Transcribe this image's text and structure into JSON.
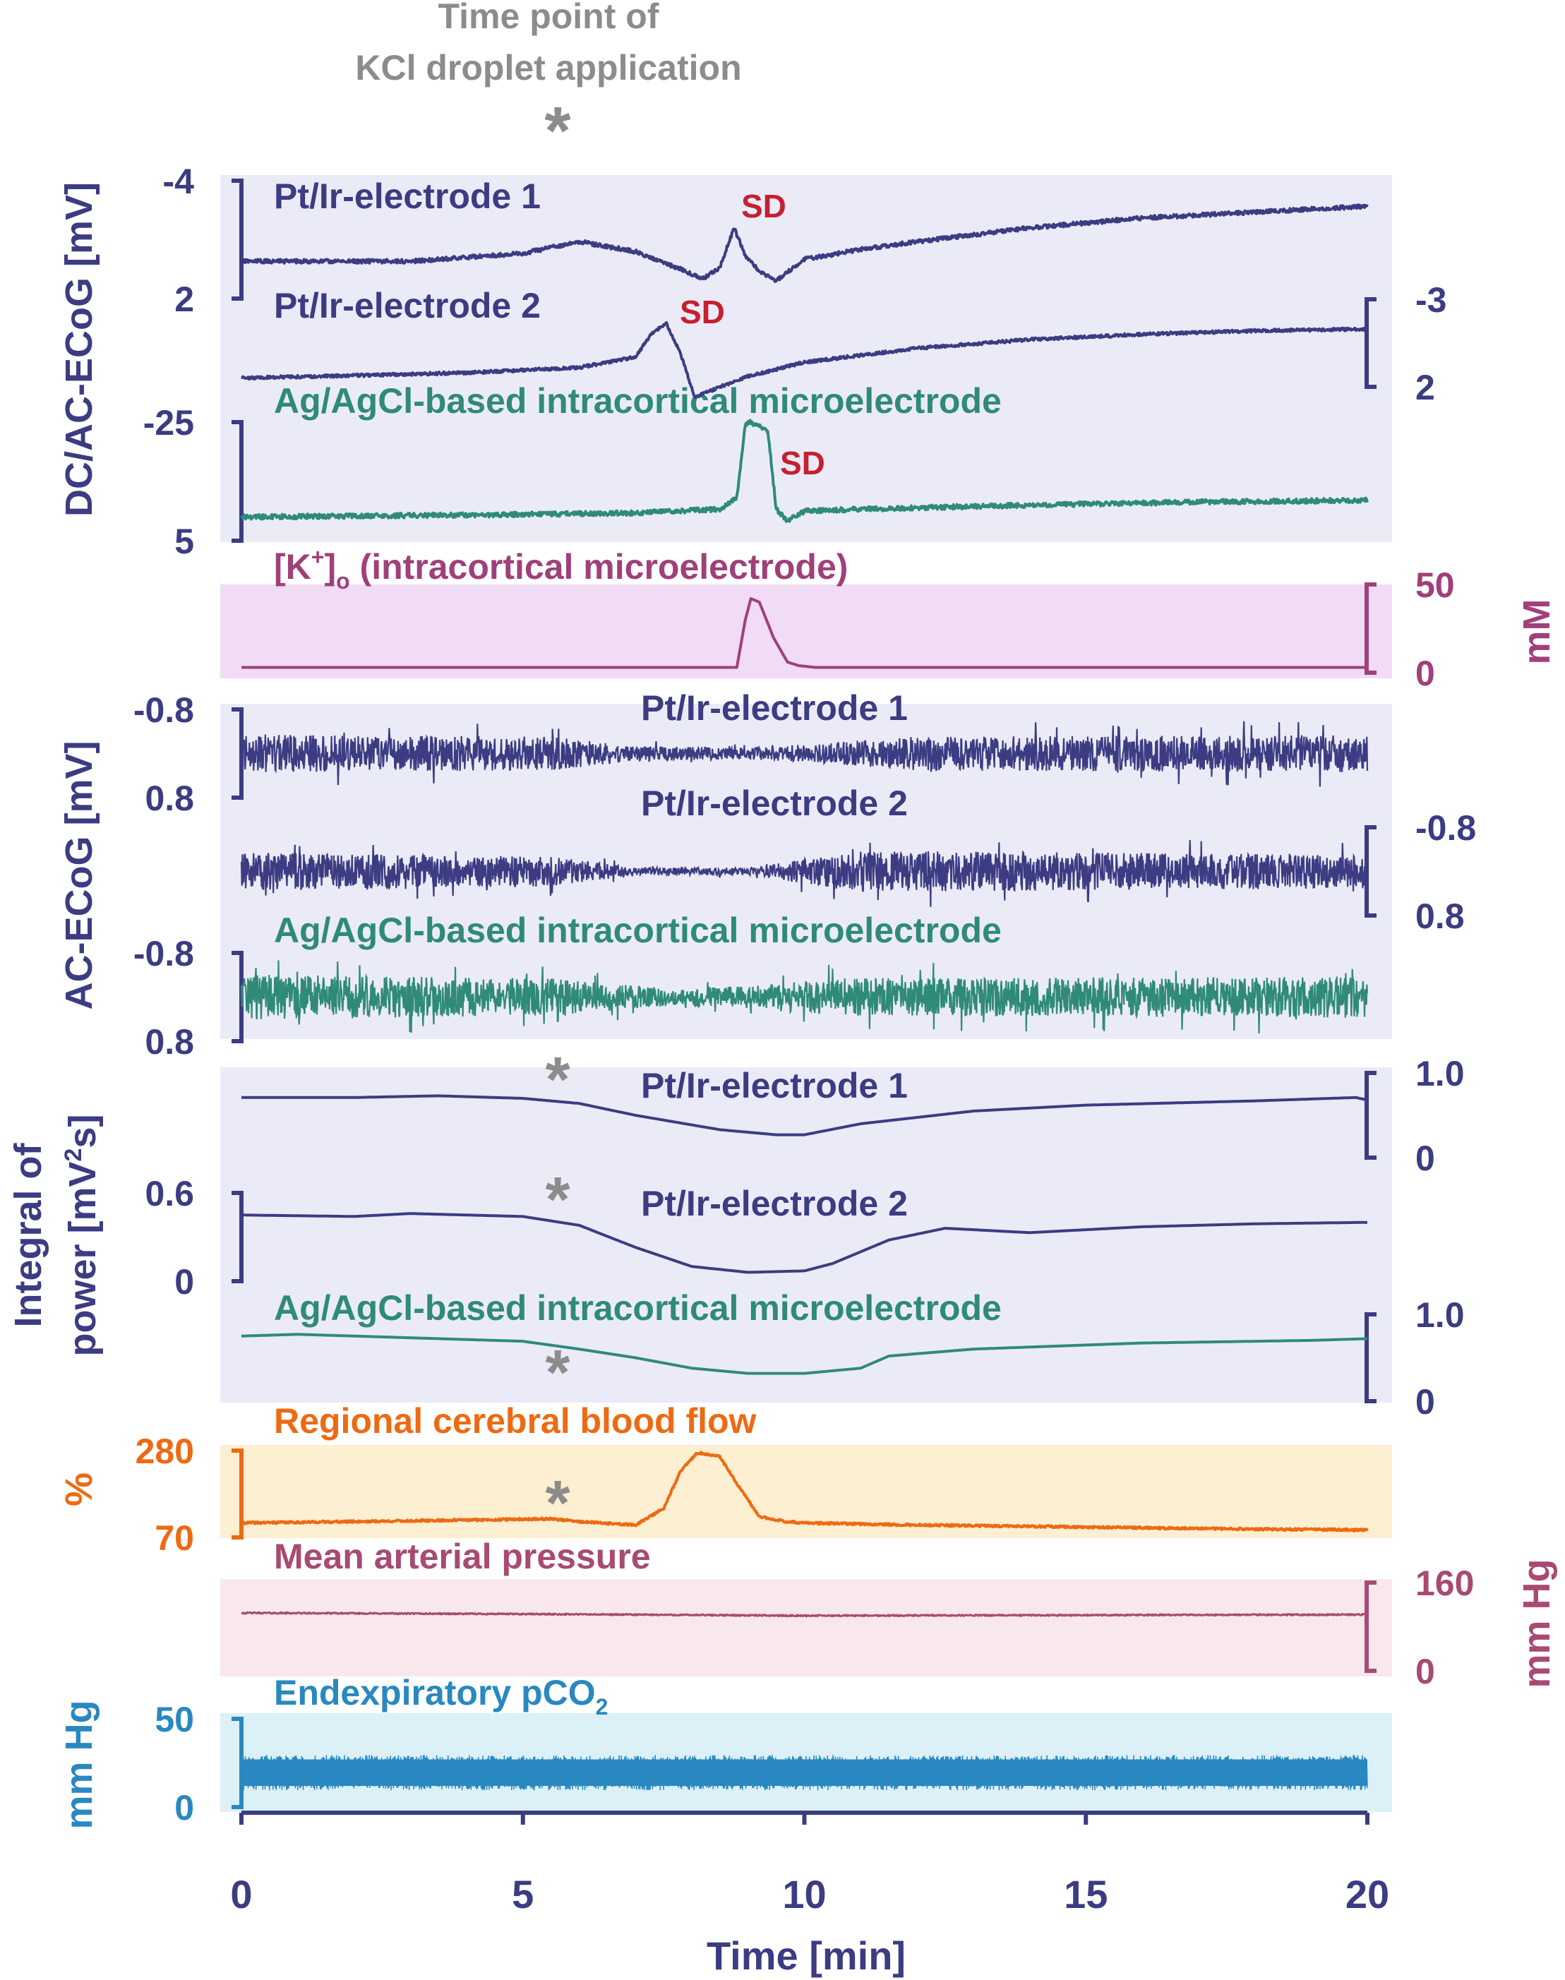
{
  "chart_data": {
    "type": "line",
    "title": "Time point of KCl droplet application",
    "title_lines": [
      "Time point of",
      "KCl droplet application"
    ],
    "marker_symbol": "*",
    "marker_time_min": 5.7,
    "xlabel": "Time [min]",
    "xlim": [
      0,
      20
    ],
    "xticks": [
      0,
      5,
      10,
      15,
      20
    ],
    "xtick_labels": [
      "0",
      "5",
      "10",
      "15",
      "20"
    ],
    "colors": {
      "ptir": "#3b3c82",
      "agcl": "#2f8a7a",
      "potassium": "#a0407a",
      "sd": "#c62030",
      "rcbf": "#ee6a12",
      "map": "#a84a72",
      "pco2": "#2a88c0",
      "grey": "#8c8c8c",
      "bg_ecog": "#ebebf8",
      "bg_k": "#f0dcf4",
      "bg_rcbf": "#fcefd2",
      "bg_map": "#f8e8ee",
      "bg_pco2": "#dcf0f7"
    },
    "group_labels": {
      "dc_ac_ecog": "DC/AC-ECoG [mV]",
      "ac_ecog": "AC-ECoG [mV]",
      "power_line1": "Integral of",
      "power_line2": "power [mV",
      "power_sup": "2",
      "power_tail": "s]",
      "rcbf_unit": "%",
      "k_unit": "mM",
      "map_unit": "mm Hg",
      "pco2_unit": "mm Hg"
    },
    "sd_label": "SD",
    "series": [
      {
        "id": "dc1",
        "name": "Pt/Ir-electrode 1",
        "ylim": [
          -4,
          2
        ],
        "axis": "left",
        "tick_labels": [
          "-4",
          "2"
        ],
        "x": [
          0,
          3,
          5,
          6,
          7,
          7.8,
          8.2,
          8.5,
          8.75,
          8.95,
          9.2,
          9.5,
          10,
          11,
          12,
          14,
          16,
          18,
          20
        ],
        "values": [
          0.1,
          0.1,
          -0.3,
          -0.9,
          -0.4,
          0.5,
          1.0,
          0.4,
          -1.6,
          -0.2,
          0.6,
          1.1,
          0.0,
          -0.5,
          -0.9,
          -1.6,
          -2.1,
          -2.4,
          -2.7
        ]
      },
      {
        "id": "dc2",
        "name": "Pt/Ir-electrode 2",
        "ylim": [
          -3,
          2
        ],
        "axis": "right",
        "tick_labels": [
          "-3",
          "2"
        ],
        "x": [
          0,
          4,
          6,
          7,
          7.3,
          7.55,
          7.8,
          8.05,
          8.5,
          9,
          10,
          12,
          14,
          16,
          18,
          20
        ],
        "values": [
          1.5,
          1.2,
          0.9,
          0.3,
          -1.1,
          -1.6,
          0.1,
          2.6,
          2.0,
          1.4,
          0.6,
          -0.2,
          -0.7,
          -1.0,
          -1.2,
          -1.3
        ]
      },
      {
        "id": "dc3",
        "name": "Ag/AgCl-based intracortical microelectrode",
        "ylim": [
          -25,
          5
        ],
        "axis": "left",
        "tick_labels": [
          "-25",
          "5"
        ],
        "x": [
          0,
          4,
          7,
          8.5,
          8.8,
          8.95,
          9.05,
          9.35,
          9.5,
          9.7,
          10,
          11,
          14,
          17,
          20
        ],
        "values": [
          -1.0,
          -1.5,
          -2.0,
          -3.0,
          -6,
          -24.5,
          -25,
          -23,
          -3,
          0,
          -2.5,
          -3,
          -4,
          -4.8,
          -5.2
        ]
      },
      {
        "id": "k",
        "name": "[K+]o (intracortical microelectrode)",
        "name_prefix": "[K",
        "name_sup": "+",
        "name_mid": "]",
        "name_sub": "o",
        "name_suffix": " (intracortical microelectrode)",
        "ylim": [
          0,
          50
        ],
        "axis": "right",
        "tick_labels": [
          "50",
          "0"
        ],
        "x": [
          0,
          8.8,
          8.95,
          9.05,
          9.2,
          9.45,
          9.7,
          9.9,
          10.2,
          20
        ],
        "values": [
          3,
          3,
          30,
          42,
          40,
          20,
          6,
          4,
          3,
          3
        ]
      },
      {
        "id": "ac1",
        "name": "Pt/Ir-electrode 1",
        "ylim": [
          -0.8,
          0.8
        ],
        "axis": "left",
        "tick_labels": [
          "-0.8",
          "0.8"
        ],
        "x": [
          0,
          5.5,
          7,
          9,
          10.5,
          12,
          20
        ],
        "amplitude": [
          0.5,
          0.45,
          0.2,
          0.15,
          0.3,
          0.45,
          0.5
        ]
      },
      {
        "id": "ac2",
        "name": "Pt/Ir-electrode 2",
        "ylim": [
          -0.8,
          0.8
        ],
        "axis": "right",
        "tick_labels": [
          "-0.8",
          "0.8"
        ],
        "x": [
          0,
          5.5,
          7,
          9,
          10.3,
          11,
          20
        ],
        "amplitude": [
          0.5,
          0.4,
          0.1,
          0.1,
          0.4,
          0.55,
          0.45
        ]
      },
      {
        "id": "ac3",
        "name": "Ag/AgCl-based intracortical microelectrode",
        "ylim": [
          -0.8,
          0.8
        ],
        "axis": "left",
        "tick_labels": [
          "-0.8",
          "0.8"
        ],
        "x": [
          0,
          5.5,
          7.5,
          9,
          10.5,
          20
        ],
        "amplitude": [
          0.6,
          0.5,
          0.25,
          0.3,
          0.5,
          0.55
        ]
      },
      {
        "id": "pw1",
        "name": "Pt/Ir-electrode 1",
        "ylim": [
          0,
          1.0
        ],
        "axis": "right",
        "tick_labels": [
          "1.0",
          "0"
        ],
        "x": [
          0,
          2,
          3.5,
          5,
          6,
          7,
          8.5,
          9.5,
          10,
          11,
          13,
          15,
          18,
          19.8,
          20
        ],
        "values": [
          0.71,
          0.71,
          0.73,
          0.7,
          0.64,
          0.5,
          0.33,
          0.27,
          0.27,
          0.4,
          0.55,
          0.62,
          0.67,
          0.71,
          0.68
        ]
      },
      {
        "id": "pw2",
        "name": "Pt/Ir-electrode 2",
        "ylim": [
          0,
          0.6
        ],
        "axis": "left",
        "tick_labels": [
          "0.6",
          "0"
        ],
        "x": [
          0,
          2,
          3,
          5,
          6,
          7,
          8,
          9,
          10,
          10.5,
          11.5,
          12.5,
          14,
          16,
          18,
          20
        ],
        "values": [
          0.45,
          0.44,
          0.46,
          0.44,
          0.38,
          0.23,
          0.1,
          0.06,
          0.07,
          0.12,
          0.28,
          0.36,
          0.33,
          0.37,
          0.39,
          0.4
        ]
      },
      {
        "id": "pw3",
        "name": "Ag/AgCl-based intracortical microelectrode",
        "ylim": [
          0,
          1.0
        ],
        "axis": "right",
        "tick_labels": [
          "1.0",
          "0"
        ],
        "x": [
          0,
          1,
          3,
          5,
          6,
          7,
          8,
          9,
          10,
          11,
          11.5,
          13,
          16,
          19,
          20
        ],
        "values": [
          0.75,
          0.77,
          0.73,
          0.69,
          0.6,
          0.5,
          0.38,
          0.32,
          0.32,
          0.38,
          0.52,
          0.6,
          0.67,
          0.7,
          0.72
        ]
      },
      {
        "id": "rcbf",
        "name": "Regional cerebral blood flow",
        "ylim": [
          70,
          280
        ],
        "axis": "left",
        "tick_labels": [
          "280",
          "70"
        ],
        "x": [
          0,
          3,
          5.5,
          6,
          7,
          7.5,
          7.8,
          8.1,
          8.5,
          8.8,
          9.2,
          9.7,
          10,
          12,
          15,
          18,
          20
        ],
        "values": [
          105,
          110,
          115,
          108,
          100,
          140,
          230,
          275,
          265,
          200,
          120,
          108,
          105,
          100,
          95,
          90,
          88
        ]
      },
      {
        "id": "map",
        "name": "Mean arterial pressure",
        "ylim": [
          0,
          160
        ],
        "axis": "right",
        "tick_labels": [
          "160",
          "0"
        ],
        "x": [
          0,
          5,
          10,
          15,
          20
        ],
        "values": [
          105,
          103,
          100,
          101,
          102
        ]
      },
      {
        "id": "pco2",
        "name": "Endexpiratory pCO2",
        "name_prefix": "Endexpiratory pCO",
        "name_sub": "2",
        "ylim": [
          0,
          50
        ],
        "axis": "left",
        "tick_labels": [
          "50",
          "0"
        ],
        "x": [
          0,
          20
        ],
        "band": [
          12,
          27
        ]
      }
    ]
  }
}
